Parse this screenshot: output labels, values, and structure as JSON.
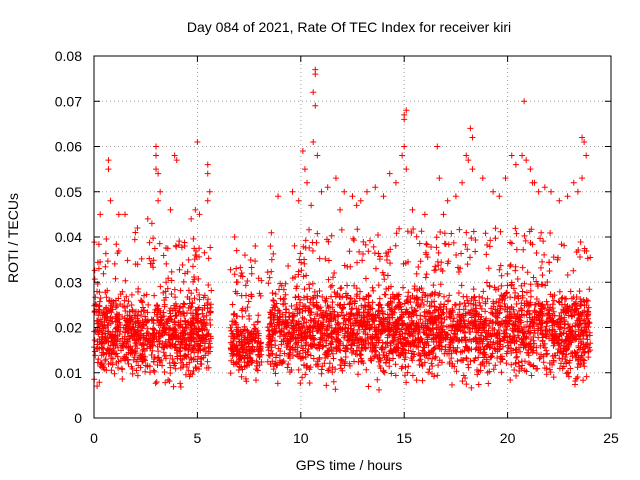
{
  "chart_data": {
    "type": "scatter",
    "title": "Day 084 of 2021, Rate Of TEC Index for receiver kiri",
    "xlabel": "GPS time / hours",
    "ylabel": "ROTI / TECUs",
    "xlim": [
      0,
      25
    ],
    "ylim": [
      0,
      0.08
    ],
    "xticks": [
      0,
      5,
      10,
      15,
      20,
      25
    ],
    "xtick_labels": [
      "0",
      "5",
      "10",
      "15",
      "20",
      "25"
    ],
    "yticks": [
      0,
      0.01,
      0.02,
      0.03,
      0.04,
      0.05,
      0.06,
      0.07,
      0.08
    ],
    "ytick_labels": [
      "0",
      "0.01",
      "0.02",
      "0.03",
      "0.04",
      "0.05",
      "0.06",
      "0.07",
      "0.08"
    ],
    "grid": true,
    "marker": "+",
    "color": "#ff0000",
    "series": [
      {
        "name": "ROTI",
        "data_segments": [
          {
            "x_range": [
              0.0,
              5.7
            ],
            "typical_range": [
              0.007,
              0.03
            ],
            "max_outliers": [
              [
                0.7,
                0.057
              ],
              [
                1.5,
                0.045
              ],
              [
                3.0,
                0.06
              ],
              [
                3.0,
                0.055
              ],
              [
                3.9,
                0.058
              ],
              [
                5.0,
                0.061
              ],
              [
                5.5,
                0.056
              ]
            ]
          },
          {
            "x_range": [
              6.6,
              8.1
            ],
            "typical_range": [
              0.008,
              0.025
            ],
            "max_outliers": [
              [
                6.8,
                0.04
              ],
              [
                7.8,
                0.038
              ]
            ]
          },
          {
            "x_range": [
              8.4,
              24.0
            ],
            "typical_range": [
              0.007,
              0.032
            ],
            "max_outliers": [
              [
                10.7,
                0.077
              ],
              [
                10.6,
                0.072
              ],
              [
                10.6,
                0.061
              ],
              [
                15.0,
                0.068
              ],
              [
                15.0,
                0.066
              ],
              [
                15.0,
                0.06
              ],
              [
                16.6,
                0.06
              ],
              [
                18.2,
                0.064
              ],
              [
                20.8,
                0.07
              ],
              [
                21.0,
                0.058
              ],
              [
                23.6,
                0.062
              ],
              [
                23.7,
                0.058
              ]
            ]
          }
        ],
        "outliers": [
          [
            0.3,
            0.045
          ],
          [
            0.7,
            0.057
          ],
          [
            0.7,
            0.055
          ],
          [
            0.8,
            0.048
          ],
          [
            1.2,
            0.045
          ],
          [
            1.5,
            0.045
          ],
          [
            2.1,
            0.042
          ],
          [
            2.8,
            0.043
          ],
          [
            3.0,
            0.06
          ],
          [
            3.0,
            0.058
          ],
          [
            3.0,
            0.055
          ],
          [
            3.1,
            0.054
          ],
          [
            3.2,
            0.05
          ],
          [
            3.1,
            0.048
          ],
          [
            3.7,
            0.046
          ],
          [
            3.9,
            0.058
          ],
          [
            4.0,
            0.057
          ],
          [
            4.7,
            0.044
          ],
          [
            4.9,
            0.046
          ],
          [
            5.0,
            0.061
          ],
          [
            5.1,
            0.045
          ],
          [
            5.5,
            0.056
          ],
          [
            5.5,
            0.054
          ],
          [
            5.6,
            0.05
          ],
          [
            5.5,
            0.048
          ],
          [
            2.6,
            0.044
          ],
          [
            2.0,
            0.041
          ],
          [
            6.8,
            0.04
          ],
          [
            7.3,
            0.036
          ],
          [
            7.8,
            0.038
          ],
          [
            6.9,
            0.037
          ],
          [
            8.6,
            0.035
          ],
          [
            8.9,
            0.049
          ],
          [
            9.6,
            0.05
          ],
          [
            9.9,
            0.048
          ],
          [
            10.1,
            0.059
          ],
          [
            10.2,
            0.055
          ],
          [
            10.3,
            0.052
          ],
          [
            10.5,
            0.047
          ],
          [
            10.6,
            0.061
          ],
          [
            10.6,
            0.072
          ],
          [
            10.7,
            0.077
          ],
          [
            10.7,
            0.076
          ],
          [
            10.7,
            0.069
          ],
          [
            10.8,
            0.058
          ],
          [
            11.0,
            0.05
          ],
          [
            11.3,
            0.051
          ],
          [
            11.7,
            0.053
          ],
          [
            12.1,
            0.05
          ],
          [
            12.5,
            0.049
          ],
          [
            12.9,
            0.048
          ],
          [
            13.2,
            0.05
          ],
          [
            13.6,
            0.051
          ],
          [
            14.0,
            0.049
          ],
          [
            14.3,
            0.054
          ],
          [
            14.6,
            0.052
          ],
          [
            14.9,
            0.058
          ],
          [
            15.0,
            0.06
          ],
          [
            15.0,
            0.066
          ],
          [
            15.0,
            0.067
          ],
          [
            15.1,
            0.068
          ],
          [
            15.1,
            0.055
          ],
          [
            15.4,
            0.046
          ],
          [
            16.0,
            0.045
          ],
          [
            16.6,
            0.06
          ],
          [
            16.7,
            0.053
          ],
          [
            17.1,
            0.048
          ],
          [
            17.5,
            0.049
          ],
          [
            17.8,
            0.052
          ],
          [
            18.0,
            0.058
          ],
          [
            18.1,
            0.057
          ],
          [
            18.2,
            0.064
          ],
          [
            18.3,
            0.062
          ],
          [
            18.3,
            0.055
          ],
          [
            18.8,
            0.053
          ],
          [
            19.3,
            0.05
          ],
          [
            19.6,
            0.049
          ],
          [
            19.9,
            0.053
          ],
          [
            20.2,
            0.058
          ],
          [
            20.4,
            0.056
          ],
          [
            20.7,
            0.058
          ],
          [
            20.8,
            0.07
          ],
          [
            20.9,
            0.057
          ],
          [
            21.1,
            0.055
          ],
          [
            21.2,
            0.052
          ],
          [
            21.5,
            0.05
          ],
          [
            21.8,
            0.051
          ],
          [
            22.1,
            0.05
          ],
          [
            22.5,
            0.048
          ],
          [
            22.9,
            0.049
          ],
          [
            23.2,
            0.052
          ],
          [
            23.4,
            0.05
          ],
          [
            23.6,
            0.062
          ],
          [
            23.7,
            0.061
          ],
          [
            23.8,
            0.058
          ],
          [
            23.6,
            0.053
          ],
          [
            21.3,
            0.052
          ],
          [
            16.9,
            0.045
          ],
          [
            12.7,
            0.047
          ],
          [
            11.9,
            0.046
          ]
        ]
      }
    ]
  }
}
